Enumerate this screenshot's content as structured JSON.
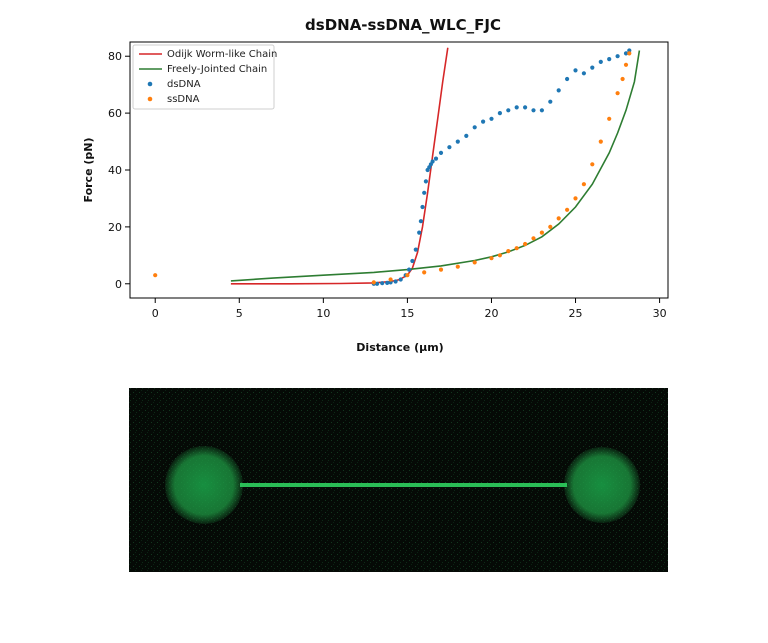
{
  "chart_data": {
    "type": "scatter",
    "title": "dsDNA-ssDNA_WLC_FJC",
    "xlabel": "Distance (µm)",
    "ylabel": "Force (pN)",
    "xlim": [
      -1.5,
      30.5
    ],
    "ylim": [
      -5,
      85
    ],
    "xticks": [
      0,
      5,
      10,
      15,
      20,
      25,
      30
    ],
    "yticks": [
      0,
      20,
      40,
      60,
      80
    ],
    "grid": false,
    "legend_position": "top-left",
    "series": [
      {
        "name": "Odijk Worm-like Chain",
        "kind": "line",
        "color": "#d62728",
        "x": [
          4.5,
          8,
          11,
          13,
          14,
          14.5,
          15,
          15.3,
          15.6,
          15.9,
          16.2,
          16.5,
          16.8,
          17.1,
          17.4
        ],
        "y": [
          0,
          0,
          0.1,
          0.3,
          0.8,
          1.4,
          3,
          5.5,
          11,
          20,
          32,
          45,
          58,
          71,
          83
        ]
      },
      {
        "name": "Freely-Jointed Chain",
        "kind": "line",
        "color": "#2e7d32",
        "x": [
          4.5,
          7,
          10,
          13,
          15,
          17,
          19,
          20,
          21,
          22,
          23,
          24,
          25,
          26,
          27,
          27.5,
          28,
          28.5,
          28.8
        ],
        "y": [
          1,
          2,
          3,
          4,
          5,
          6.3,
          8.2,
          9.5,
          11.2,
          13.5,
          16.5,
          21,
          27,
          35,
          46,
          53,
          61,
          71,
          82
        ]
      },
      {
        "name": "dsDNA",
        "kind": "scatter",
        "color": "#1f77b4",
        "x": [
          13,
          13.2,
          13.5,
          13.8,
          14,
          14.3,
          14.6,
          14.9,
          15.1,
          15.3,
          15.5,
          15.7,
          15.8,
          15.9,
          16.0,
          16.1,
          16.2,
          16.3,
          16.4,
          16.5,
          16.7,
          17,
          17.5,
          18,
          18.5,
          19,
          19.5,
          20,
          20.5,
          21,
          21.5,
          22,
          22.5,
          23,
          23.5,
          24,
          24.5,
          25,
          25.5,
          26,
          26.5,
          27,
          27.5,
          28,
          28.2
        ],
        "y": [
          0,
          0,
          0.2,
          0.3,
          0.5,
          0.8,
          1.5,
          3,
          5,
          8,
          12,
          18,
          22,
          27,
          32,
          36,
          40,
          41,
          42,
          43,
          44,
          46,
          48,
          50,
          52,
          55,
          57,
          58,
          60,
          61,
          62,
          62,
          61,
          61,
          64,
          68,
          72,
          75,
          74,
          76,
          78,
          79,
          80,
          81,
          82
        ]
      },
      {
        "name": "ssDNA",
        "kind": "scatter",
        "color": "#ff7f0e",
        "x": [
          0,
          13,
          14,
          15,
          16,
          17,
          18,
          19,
          20,
          20.5,
          21,
          21.5,
          22,
          22.5,
          23,
          23.5,
          24,
          24.5,
          25,
          25.5,
          26,
          26.5,
          27,
          27.5,
          27.8,
          28,
          28.2
        ],
        "y": [
          3,
          0.5,
          1.5,
          3,
          4,
          5,
          6,
          7.5,
          9,
          10,
          11.5,
          12.5,
          14,
          16,
          18,
          20,
          23,
          26,
          30,
          35,
          42,
          50,
          58,
          67,
          72,
          77,
          81
        ]
      }
    ]
  }
}
